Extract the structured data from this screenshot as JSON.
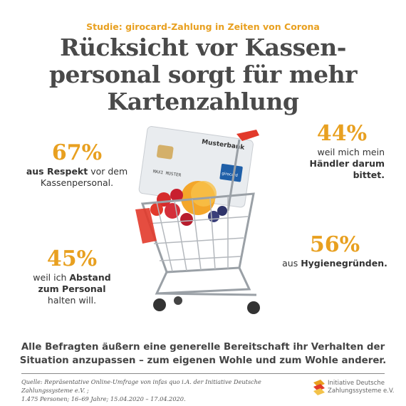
{
  "kicker": "Studie: girocard-Zahlung in Zeiten von Corona",
  "headline": {
    "line1": "Rücksicht vor Kassen-",
    "line2": "personal sorgt für mehr",
    "line3": "Kartenzahlung"
  },
  "stats": {
    "s67": {
      "value": "67%",
      "bold": "aus Respekt",
      "rest1": " vor dem",
      "line2": "Kassenpersonal."
    },
    "s45": {
      "value": "45%",
      "pre": "weil ich ",
      "bold1": "Abstand",
      "bold2": "zum Personal",
      "line3": "halten will."
    },
    "s44": {
      "value": "44%",
      "line1": "weil mich mein",
      "bold1": "Händler darum",
      "bold2": "bittet."
    },
    "s56": {
      "value": "56%",
      "pre": "aus ",
      "bold": "Hygienegründen."
    }
  },
  "card": {
    "bank": "Musterbank",
    "holder": "MAXI MUSTER",
    "brand": "girocard"
  },
  "summary": {
    "line1": "Alle Befragten äußern eine generelle Bereitschaft ihr Verhalten der",
    "line2": "Situation anzupassen – zum eigenen Wohle und zum Wohle anderer."
  },
  "source": {
    "line1": "Quelle: Repräsentative Online-Umfrage von infas quo i.A. der Initiative Deutsche Zahlungssysteme e.V. ;",
    "line2": "1.475 Personen; 16–69 Jahre; 15.04.2020 – 17.04.2020."
  },
  "logo": {
    "line1": "Initiative Deutsche",
    "line2": "Zahlungssysteme e.V."
  },
  "colors": {
    "accent": "#E8A020",
    "headline": "#4a4a4a",
    "cart_red": "#E23A2B"
  }
}
